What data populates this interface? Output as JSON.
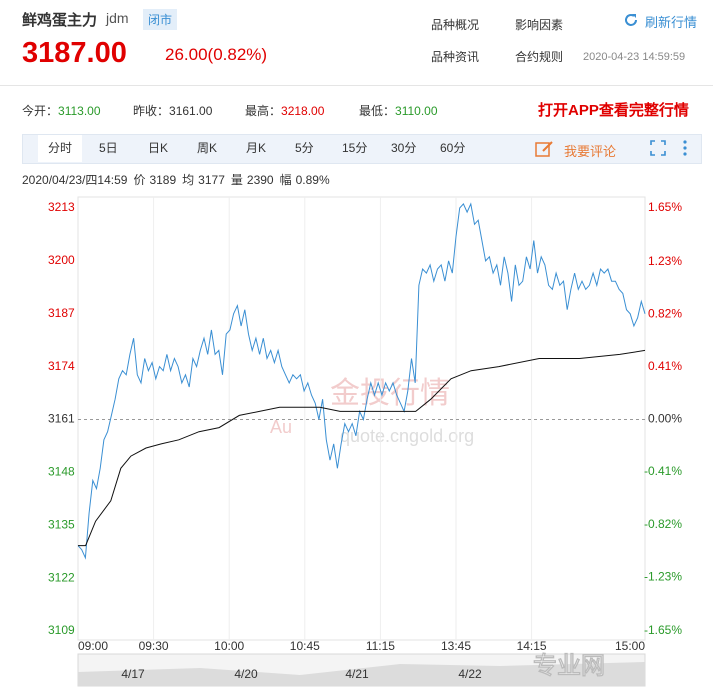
{
  "header": {
    "name": "鲜鸡蛋主力",
    "code": "jdm",
    "status": "闭市",
    "links": [
      "品种概况",
      "影响因素",
      "品种资讯",
      "合约规则"
    ],
    "refresh": "刷新行情",
    "price": "3187.00",
    "change": "26.00(0.82%)",
    "time": "2020-04-23 14:59:59"
  },
  "stats": [
    {
      "label": "今开：",
      "value": "3113.00",
      "color": "#2a9a2a"
    },
    {
      "label": "昨收：",
      "value": "3161.00",
      "color": "#333333"
    },
    {
      "label": "最高：",
      "value": "3218.00",
      "color": "#e00000"
    },
    {
      "label": "最低：",
      "value": "3110.00",
      "color": "#2a9a2a"
    }
  ],
  "app_link": "打开APP查看完整行情",
  "tabs": [
    "分时",
    "5日",
    "日K",
    "周K",
    "月K",
    "5分",
    "15分",
    "30分",
    "60分"
  ],
  "comment": "我要评论",
  "info": {
    "time": "2020/04/23/四14:59",
    "items": [
      {
        "label": "价",
        "value": "3189"
      },
      {
        "label": "均",
        "value": "3177"
      },
      {
        "label": "量",
        "value": "2390"
      },
      {
        "label": "幅",
        "value": "0.89%"
      }
    ]
  },
  "watermark": [
    "金投行情",
    "quote.cngold.org",
    "Au",
    "专业网"
  ],
  "navigator": {
    "dates": [
      "4/17",
      "4/20",
      "4/21",
      "4/22"
    ]
  },
  "chart_data": {
    "type": "line",
    "ylim": [
      3109,
      3213
    ],
    "yticks": [
      3213,
      3200,
      3187,
      3174,
      3161,
      3148,
      3135,
      3122,
      3109
    ],
    "y2lim": [
      -1.65,
      1.65
    ],
    "y2ticks": [
      {
        "value": 1.65,
        "label": "1.65%"
      },
      {
        "value": 1.23,
        "label": "1.23%"
      },
      {
        "value": 0.82,
        "label": "0.82%"
      },
      {
        "value": 0.41,
        "label": "0.41%"
      },
      {
        "value": 0,
        "label": "0.00%"
      },
      {
        "value": -0.41,
        "label": "-0.41%"
      },
      {
        "value": -0.82,
        "label": "-0.82%"
      },
      {
        "value": -1.23,
        "label": "-1.23%"
      },
      {
        "value": -1.65,
        "label": "-1.65%"
      }
    ],
    "xlim": [
      0,
      225
    ],
    "xticks": [
      {
        "value": 0,
        "label": "09:00"
      },
      {
        "value": 30,
        "label": "09:30"
      },
      {
        "value": 60,
        "label": "10:00"
      },
      {
        "value": 90,
        "label": "10:45"
      },
      {
        "value": 120,
        "label": "11:15"
      },
      {
        "value": 150,
        "label": "13:45"
      },
      {
        "value": 180,
        "label": "14:15"
      },
      {
        "value": 225,
        "label": "15:00"
      }
    ],
    "reference": 3161,
    "up_color": "#e00000",
    "down_color": "#2a9a2a",
    "grid": true,
    "series": [
      {
        "color": "#3a8fd3",
        "values": [
          3130,
          3129,
          3127,
          3138,
          3146,
          3144,
          3149,
          3156,
          3158,
          3162,
          3166,
          3171,
          3173,
          3172,
          3177,
          3181,
          3172,
          3170,
          3176,
          3173,
          3175,
          3171,
          3174,
          3173,
          3177,
          3173,
          3176,
          3174,
          3170,
          3172,
          3169,
          3176,
          3174,
          3178,
          3181,
          3177,
          3183,
          3177,
          3178,
          3172,
          3182,
          3183,
          3187,
          3189,
          3184,
          3188,
          3182,
          3178,
          3181,
          3177,
          3181,
          3176,
          3178,
          3175,
          3178,
          3174,
          3172,
          3170,
          3172,
          3171,
          3172,
          3168,
          3170,
          3167,
          3165,
          3161,
          3166,
          3156,
          3151,
          3155,
          3149,
          3155,
          3160,
          3158,
          3160,
          3157,
          3163,
          3161,
          3166,
          3170,
          3167,
          3170,
          3167,
          3170,
          3168,
          3170,
          3167,
          3165,
          3163,
          3168,
          3176,
          3170,
          3194,
          3198,
          3197,
          3199,
          3195,
          3198,
          3199,
          3195,
          3200,
          3197,
          3206,
          3213,
          3214,
          3212,
          3214,
          3209,
          3210,
          3205,
          3200,
          3201,
          3197,
          3199,
          3194,
          3201,
          3197,
          3190,
          3199,
          3194,
          3195,
          3201,
          3198,
          3205,
          3197,
          3201,
          3199,
          3194,
          3193,
          3197,
          3194,
          3195,
          3188,
          3193,
          3197,
          3193,
          3195,
          3193,
          3194,
          3197,
          3194,
          3198,
          3197,
          3198,
          3195,
          3195,
          3193,
          3192,
          3188,
          3187,
          3184,
          3186,
          3190,
          3187
        ]
      },
      {
        "color": "#111111",
        "x": [
          0,
          3,
          7,
          13,
          17,
          21,
          27,
          33,
          40,
          48,
          56,
          64,
          72,
          80,
          88,
          96,
          104,
          116,
          128,
          134,
          140,
          148,
          156,
          167,
          183,
          199,
          215,
          225
        ],
        "values": [
          3130,
          3130,
          3136,
          3141,
          3149,
          3152,
          3154,
          3155,
          3156,
          3158,
          3159,
          3162,
          3163,
          3164,
          3164,
          3164,
          3163,
          3163,
          3163,
          3163,
          3166,
          3171,
          3173,
          3174,
          3176,
          3176,
          3177,
          3178
        ]
      }
    ]
  }
}
